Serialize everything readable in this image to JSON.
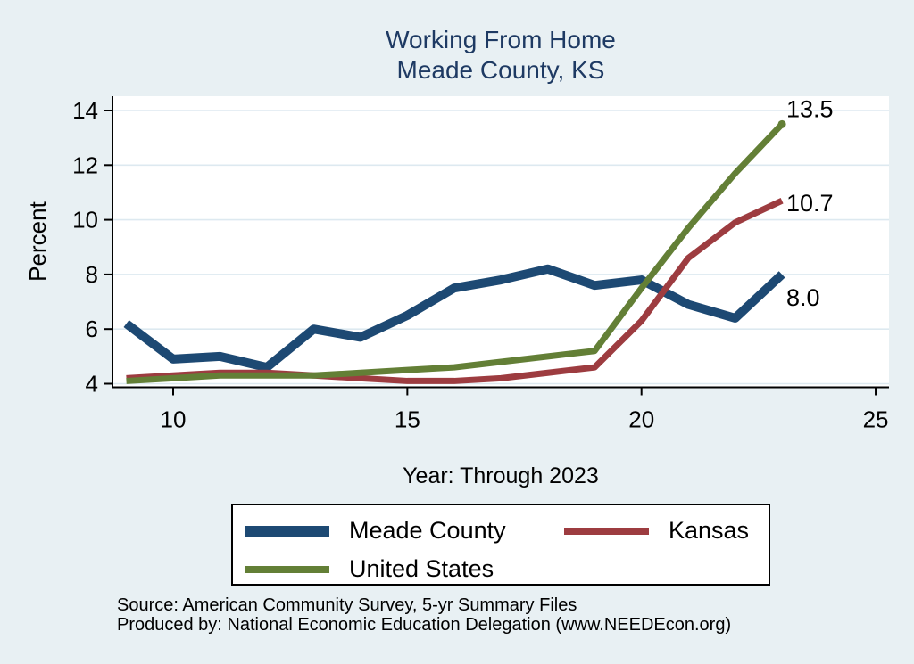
{
  "page": {
    "background": "#e8f0f3"
  },
  "title": {
    "line1": "Working From Home",
    "line2": "Meade County, KS",
    "color": "#1e3a63"
  },
  "axes": {
    "y_label": "Percent",
    "x_label": "Year: Through 2023",
    "y_ticks": [
      "4",
      "6",
      "8",
      "10",
      "12",
      "14"
    ],
    "x_ticks": [
      "10",
      "15",
      "20",
      "25"
    ]
  },
  "legend": {
    "items": [
      {
        "label": "Meade County",
        "color": "#1d4973",
        "swatch_height": 12
      },
      {
        "label": "Kansas",
        "color": "#9d3c40",
        "swatch_height": 8
      },
      {
        "label": "United States",
        "color": "#637f36",
        "swatch_height": 8
      }
    ]
  },
  "source": {
    "line1": "Source: American Community Survey, 5-yr Summary Files",
    "line2": "Produced by: National Economic Education Delegation (www.NEEDEcon.org)"
  },
  "colors": {
    "plot_bg": "#ffffff",
    "gridline": "#dde9f0",
    "axis": "#000000",
    "tick_label": "#000000",
    "end_label": "#000000"
  },
  "chart_data": {
    "type": "line",
    "title": "Working From Home — Meade County, KS",
    "xlabel": "Year: Through 2023",
    "ylabel": "Percent",
    "x": [
      9,
      10,
      11,
      12,
      13,
      14,
      15,
      16,
      17,
      18,
      19,
      20,
      21,
      22,
      23
    ],
    "x_note": "x = year minus 2000; data years 2009-2023",
    "xlim": [
      8.7,
      25.3
    ],
    "ylim": [
      3.87,
      14.5
    ],
    "grid": "horizontal",
    "legend_position": "bottom",
    "series": [
      {
        "name": "Meade County",
        "color": "#1d4973",
        "line_width": 10,
        "values": [
          6.2,
          4.9,
          5.0,
          4.6,
          6.0,
          5.7,
          6.5,
          7.5,
          7.8,
          8.2,
          7.6,
          7.8,
          6.9,
          6.4,
          8.0
        ],
        "end_label": "8.0"
      },
      {
        "name": "Kansas",
        "color": "#9d3c40",
        "line_width": 7,
        "values": [
          4.2,
          4.3,
          4.4,
          4.4,
          4.3,
          4.2,
          4.1,
          4.1,
          4.2,
          4.4,
          4.6,
          6.3,
          8.6,
          9.9,
          10.7
        ],
        "end_label": "10.7"
      },
      {
        "name": "United States",
        "color": "#637f36",
        "line_width": 7,
        "values": [
          4.1,
          4.2,
          4.3,
          4.3,
          4.3,
          4.4,
          4.5,
          4.6,
          4.8,
          5.0,
          5.2,
          7.5,
          9.7,
          11.7,
          13.5
        ],
        "end_label": "13.5",
        "end_marker": true
      }
    ]
  }
}
